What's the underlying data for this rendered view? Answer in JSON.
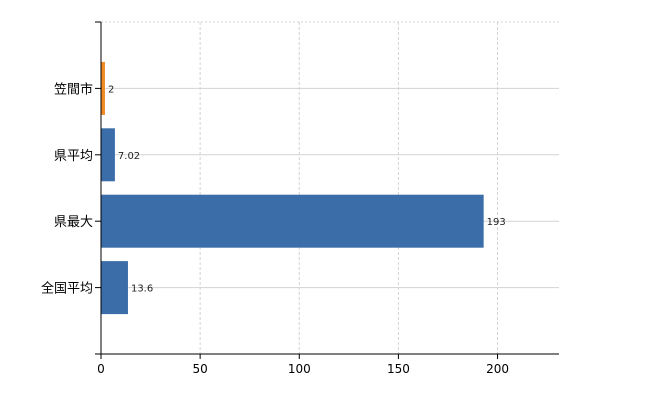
{
  "chart_data": {
    "type": "bar",
    "orientation": "horizontal",
    "categories": [
      "笠間市",
      "県平均",
      "県最大",
      "全国平均"
    ],
    "values": [
      2,
      7.02,
      193,
      13.6
    ],
    "data_labels": [
      "2",
      "7.02",
      "193",
      "13.6"
    ],
    "bar_colors": [
      "#f08a24",
      "#3b6ea8",
      "#3b6ea8",
      "#3b6ea8"
    ],
    "xlim": [
      0,
      231
    ],
    "xticks": [
      0,
      50,
      100,
      150,
      200
    ],
    "xtick_labels": [
      "0",
      "50",
      "100",
      "150",
      "200"
    ],
    "grid": true,
    "grid_color": "#d3d3d3",
    "title": "",
    "xlabel": "",
    "ylabel": ""
  }
}
